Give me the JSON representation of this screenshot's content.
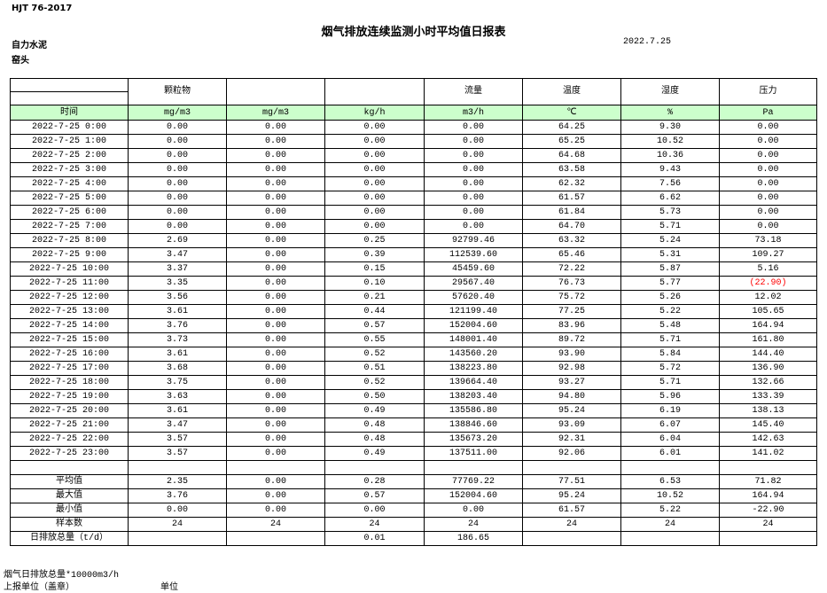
{
  "header": {
    "standard": "HJT  76-2017",
    "title": "烟气排放连续监测小时平均值日报表",
    "company": "自力水泥",
    "date": "2022.7.25",
    "unit": "窑头"
  },
  "columns": {
    "names": [
      "",
      "颗粒物",
      "",
      "",
      "流量",
      "温度",
      "湿度",
      "压力"
    ],
    "units": [
      "时间",
      "mg/m3",
      "mg/m3",
      "kg/h",
      "m3/h",
      "℃",
      "%",
      "Pa"
    ]
  },
  "rows": [
    [
      "2022-7-25 0:00",
      "0.00",
      "0.00",
      "0.00",
      "0.00",
      "64.25",
      "9.30",
      "0.00"
    ],
    [
      "2022-7-25 1:00",
      "0.00",
      "0.00",
      "0.00",
      "0.00",
      "65.25",
      "10.52",
      "0.00"
    ],
    [
      "2022-7-25 2:00",
      "0.00",
      "0.00",
      "0.00",
      "0.00",
      "64.68",
      "10.36",
      "0.00"
    ],
    [
      "2022-7-25 3:00",
      "0.00",
      "0.00",
      "0.00",
      "0.00",
      "63.58",
      "9.43",
      "0.00"
    ],
    [
      "2022-7-25 4:00",
      "0.00",
      "0.00",
      "0.00",
      "0.00",
      "62.32",
      "7.56",
      "0.00"
    ],
    [
      "2022-7-25 5:00",
      "0.00",
      "0.00",
      "0.00",
      "0.00",
      "61.57",
      "6.62",
      "0.00"
    ],
    [
      "2022-7-25 6:00",
      "0.00",
      "0.00",
      "0.00",
      "0.00",
      "61.84",
      "5.73",
      "0.00"
    ],
    [
      "2022-7-25 7:00",
      "0.00",
      "0.00",
      "0.00",
      "0.00",
      "64.70",
      "5.71",
      "0.00"
    ],
    [
      "2022-7-25 8:00",
      "2.69",
      "0.00",
      "0.25",
      "92799.46",
      "63.32",
      "5.24",
      "73.18"
    ],
    [
      "2022-7-25 9:00",
      "3.47",
      "0.00",
      "0.39",
      "112539.60",
      "65.46",
      "5.31",
      "109.27"
    ],
    [
      "2022-7-25 10:00",
      "3.37",
      "0.00",
      "0.15",
      "45459.60",
      "72.22",
      "5.87",
      "5.16"
    ],
    [
      "2022-7-25 11:00",
      "3.35",
      "0.00",
      "0.10",
      "29567.40",
      "76.73",
      "5.77",
      "(22.90)"
    ],
    [
      "2022-7-25 12:00",
      "3.56",
      "0.00",
      "0.21",
      "57620.40",
      "75.72",
      "5.26",
      "12.02"
    ],
    [
      "2022-7-25 13:00",
      "3.61",
      "0.00",
      "0.44",
      "121199.40",
      "77.25",
      "5.22",
      "105.65"
    ],
    [
      "2022-7-25 14:00",
      "3.76",
      "0.00",
      "0.57",
      "152004.60",
      "83.96",
      "5.48",
      "164.94"
    ],
    [
      "2022-7-25 15:00",
      "3.73",
      "0.00",
      "0.55",
      "148001.40",
      "89.72",
      "5.71",
      "161.80"
    ],
    [
      "2022-7-25 16:00",
      "3.61",
      "0.00",
      "0.52",
      "143560.20",
      "93.90",
      "5.84",
      "144.40"
    ],
    [
      "2022-7-25 17:00",
      "3.68",
      "0.00",
      "0.51",
      "138223.80",
      "92.98",
      "5.72",
      "136.90"
    ],
    [
      "2022-7-25 18:00",
      "3.75",
      "0.00",
      "0.52",
      "139664.40",
      "93.27",
      "5.71",
      "132.66"
    ],
    [
      "2022-7-25 19:00",
      "3.63",
      "0.00",
      "0.50",
      "138203.40",
      "94.80",
      "5.96",
      "133.39"
    ],
    [
      "2022-7-25 20:00",
      "3.61",
      "0.00",
      "0.49",
      "135586.80",
      "95.24",
      "6.19",
      "138.13"
    ],
    [
      "2022-7-25 21:00",
      "3.47",
      "0.00",
      "0.48",
      "138846.60",
      "93.09",
      "6.07",
      "145.40"
    ],
    [
      "2022-7-25 22:00",
      "3.57",
      "0.00",
      "0.48",
      "135673.20",
      "92.31",
      "6.04",
      "142.63"
    ],
    [
      "2022-7-25 23:00",
      "3.57",
      "0.00",
      "0.49",
      "137511.00",
      "92.06",
      "6.01",
      "141.02"
    ]
  ],
  "summary": [
    [
      "平均值",
      "2.35",
      "0.00",
      "0.28",
      "77769.22",
      "77.51",
      "6.53",
      "71.82"
    ],
    [
      "最大值",
      "3.76",
      "0.00",
      "0.57",
      "152004.60",
      "95.24",
      "10.52",
      "164.94"
    ],
    [
      "最小值",
      "0.00",
      "0.00",
      "0.00",
      "0.00",
      "61.57",
      "5.22",
      "-22.90"
    ],
    [
      "样本数",
      "24",
      "24",
      "24",
      "24",
      "24",
      "24",
      "24"
    ],
    [
      "日排放总量（t/d）",
      "",
      "",
      "0.01",
      "186.65",
      "",
      "",
      ""
    ]
  ],
  "negative_color": "#ff0000",
  "unit_row_color": "#ccffcc",
  "footer": {
    "note": "烟气日排放总量*10000m3/h",
    "report_unit_label": "上报单位（盖章）",
    "unit_label": "单位"
  }
}
